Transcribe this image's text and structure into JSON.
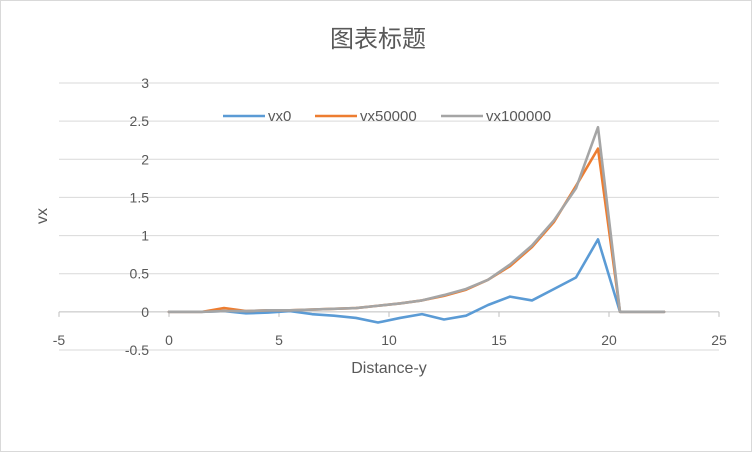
{
  "chart_data": {
    "type": "line",
    "title": "图表标题",
    "xlabel": "Distance-y",
    "ylabel": "vx",
    "xlim": [
      -5,
      25
    ],
    "ylim": [
      -0.5,
      3
    ],
    "xticks": [
      -5,
      0,
      5,
      10,
      15,
      20,
      25
    ],
    "yticks": [
      -0.5,
      0,
      0.5,
      1,
      1.5,
      2,
      2.5,
      3
    ],
    "grid": "horizontal",
    "legend_position": "top",
    "x": [
      0,
      1,
      1.5,
      2.5,
      3.5,
      4.5,
      5.5,
      6.5,
      7.5,
      8.5,
      9.5,
      10.5,
      11.5,
      12.5,
      13.5,
      14.5,
      15.5,
      16.5,
      17.5,
      18.5,
      19.5,
      20.5,
      21.5,
      22.5
    ],
    "series": [
      {
        "name": "vx0",
        "color": "#5b9bd5",
        "values": [
          0,
          0,
          0,
          0.01,
          -0.02,
          -0.01,
          0.01,
          -0.03,
          -0.05,
          -0.08,
          -0.14,
          -0.08,
          -0.03,
          -0.1,
          -0.05,
          0.09,
          0.2,
          0.15,
          0.3,
          0.45,
          0.95,
          0,
          0,
          0
        ]
      },
      {
        "name": "vx50000",
        "color": "#ed7d31",
        "values": [
          0,
          0,
          0,
          0.05,
          0.01,
          0.02,
          0.02,
          0.03,
          0.04,
          0.05,
          0.08,
          0.11,
          0.15,
          0.21,
          0.29,
          0.42,
          0.6,
          0.85,
          1.18,
          1.65,
          2.14,
          0,
          0,
          0
        ]
      },
      {
        "name": "vx100000",
        "color": "#a5a5a5",
        "values": [
          0,
          0,
          0,
          0.01,
          0.01,
          0.02,
          0.02,
          0.03,
          0.04,
          0.05,
          0.08,
          0.11,
          0.15,
          0.22,
          0.3,
          0.42,
          0.62,
          0.87,
          1.2,
          1.62,
          2.42,
          0,
          0,
          0
        ]
      }
    ]
  }
}
